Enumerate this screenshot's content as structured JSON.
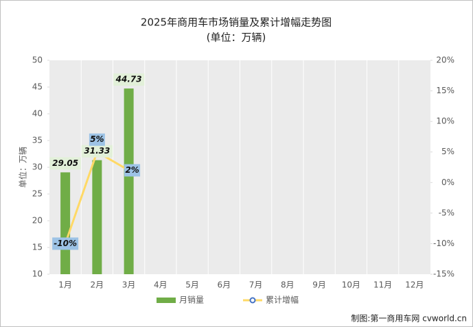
{
  "chart_data": {
    "type": "bar_line",
    "title": "2025年商用车市场销量及累计增幅走势图",
    "subtitle": "(单位：万辆)",
    "y_label": "单位：万辆",
    "credit": "制图:第一商用车网 cvworld.cn",
    "categories": [
      "1月",
      "2月",
      "3月",
      "4月",
      "5月",
      "6月",
      "7月",
      "8月",
      "9月",
      "10月",
      "11月",
      "12月"
    ],
    "series": [
      {
        "name": "月销量",
        "type": "bar",
        "color": "#70ad47",
        "values": [
          29.05,
          31.33,
          44.73,
          null,
          null,
          null,
          null,
          null,
          null,
          null,
          null,
          null
        ]
      },
      {
        "name": "累计增幅",
        "type": "line",
        "axis": "y2",
        "color": "#ffd966",
        "values": [
          -10,
          5,
          2,
          null,
          null,
          null,
          null,
          null,
          null,
          null,
          null,
          null
        ],
        "value_labels": [
          "-10%",
          "5%",
          "2%",
          null,
          null,
          null,
          null,
          null,
          null,
          null,
          null,
          null
        ]
      }
    ],
    "ylim": [
      10,
      50
    ],
    "yticks": [
      10,
      15,
      20,
      25,
      30,
      35,
      40,
      45,
      50
    ],
    "y2lim": [
      -15,
      20
    ],
    "y2ticks": [
      {
        "value": -15,
        "label": "-15%"
      },
      {
        "value": -10,
        "label": "-10%"
      },
      {
        "value": -5,
        "label": "-5%"
      },
      {
        "value": 0,
        "label": "0%"
      },
      {
        "value": 5,
        "label": "5%"
      },
      {
        "value": 10,
        "label": "10%"
      },
      {
        "value": 15,
        "label": "15%"
      },
      {
        "value": 20,
        "label": "20%"
      }
    ],
    "legend": "bottom"
  }
}
